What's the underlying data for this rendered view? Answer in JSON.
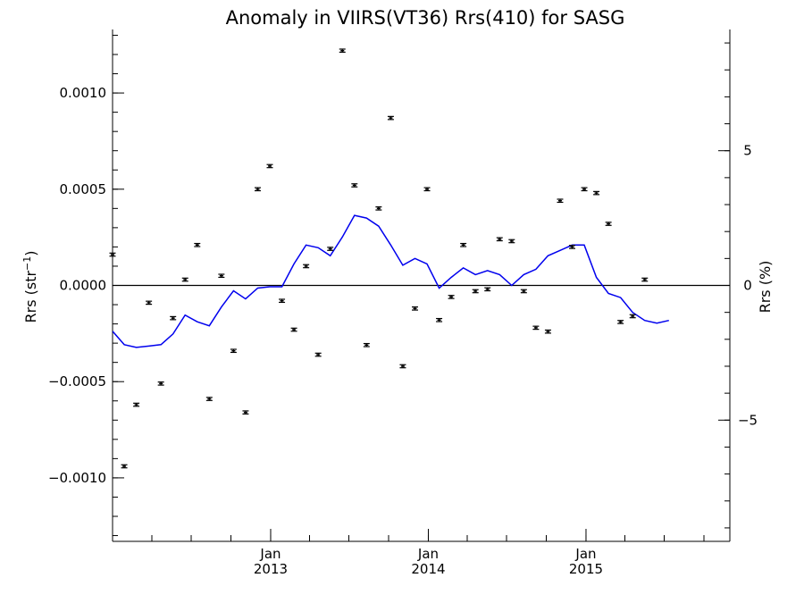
{
  "chart_data": {
    "type": "scatter",
    "title": "Anomaly in VIIRS(VT36) Rrs(410) for SASG",
    "ylabel": "Rrs (str",
    "ylabel_superscript": "−1",
    "ylabel_suffix": ")",
    "y2label": "Rrs (%)",
    "xlim": [
      "2012-01-01",
      "2015-11-30"
    ],
    "ylim": [
      -0.00133,
      0.00133
    ],
    "y2lim": [
      -9.5,
      9.5
    ],
    "x_ticks": [
      {
        "date": "2013-01-01",
        "label_month": "Jan",
        "label_year": "2013"
      },
      {
        "date": "2014-01-01",
        "label_month": "Jan",
        "label_year": "2014"
      },
      {
        "date": "2015-01-01",
        "label_month": "Jan",
        "label_year": "2015"
      }
    ],
    "x_minor_tick_months": 3,
    "y_ticks": [
      {
        "value": 0.001,
        "label": "0.0010"
      },
      {
        "value": 0.0005,
        "label": "0.0005"
      },
      {
        "value": 0.0,
        "label": "0.0000"
      },
      {
        "value": -0.0005,
        "label": "−0.0005"
      },
      {
        "value": -0.001,
        "label": "−0.0010"
      }
    ],
    "y_minor_tick_step": 0.0001,
    "y2_ticks": [
      {
        "value": 5,
        "label": "5"
      },
      {
        "value": 0,
        "label": "0"
      },
      {
        "value": -5,
        "label": "−5"
      }
    ],
    "y2_minor_tick_step": 1,
    "zero_line": true,
    "grid": false,
    "colors": {
      "points": "#000000",
      "line": "#0000ee",
      "zero_line": "#000000"
    },
    "series": [
      {
        "kind": "points_with_error_bars",
        "axis": "left",
        "error": 8e-06,
        "points": [
          [
            "2012-01-01",
            0.00016
          ],
          [
            "2012-01-28",
            -0.00094
          ],
          [
            "2012-02-25",
            -0.00062
          ],
          [
            "2012-03-25",
            -9e-05
          ],
          [
            "2012-04-22",
            -0.00051
          ],
          [
            "2012-05-20",
            -0.00017
          ],
          [
            "2012-06-17",
            3e-05
          ],
          [
            "2012-07-15",
            0.00021
          ],
          [
            "2012-08-12",
            -0.00059
          ],
          [
            "2012-09-09",
            5e-05
          ],
          [
            "2012-10-07",
            -0.00034
          ],
          [
            "2012-11-04",
            -0.00066
          ],
          [
            "2012-12-02",
            0.0005
          ],
          [
            "2012-12-30",
            0.00062
          ],
          [
            "2013-01-27",
            -8e-05
          ],
          [
            "2013-02-24",
            -0.00023
          ],
          [
            "2013-03-24",
            0.0001
          ],
          [
            "2013-04-21",
            -0.00036
          ],
          [
            "2013-05-19",
            0.00019
          ],
          [
            "2013-06-16",
            0.00122
          ],
          [
            "2013-07-14",
            0.00052
          ],
          [
            "2013-08-11",
            -0.00031
          ],
          [
            "2013-09-08",
            0.0004
          ],
          [
            "2013-10-06",
            0.00087
          ],
          [
            "2013-11-03",
            -0.00042
          ],
          [
            "2013-12-01",
            -0.00012
          ],
          [
            "2013-12-29",
            0.0005
          ],
          [
            "2014-01-26",
            -0.00018
          ],
          [
            "2014-02-23",
            -6e-05
          ],
          [
            "2014-03-23",
            0.00021
          ],
          [
            "2014-04-20",
            -3e-05
          ],
          [
            "2014-05-18",
            -2e-05
          ],
          [
            "2014-06-15",
            0.00024
          ],
          [
            "2014-07-13",
            0.00023
          ],
          [
            "2014-08-10",
            -3e-05
          ],
          [
            "2014-09-07",
            -0.00022
          ],
          [
            "2014-10-05",
            -0.00024
          ],
          [
            "2014-11-02",
            0.00044
          ],
          [
            "2014-11-30",
            0.0002
          ],
          [
            "2014-12-28",
            0.0005
          ],
          [
            "2015-01-25",
            0.00048
          ],
          [
            "2015-02-22",
            0.00032
          ],
          [
            "2015-03-22",
            -0.00019
          ],
          [
            "2015-04-19",
            -0.00016
          ],
          [
            "2015-05-17",
            3e-05
          ]
        ]
      },
      {
        "kind": "line",
        "axis": "right",
        "points": [
          [
            "2012-01-01",
            -1.7
          ],
          [
            "2012-01-28",
            -2.2
          ],
          [
            "2012-02-25",
            -2.3
          ],
          [
            "2012-03-25",
            -2.25
          ],
          [
            "2012-04-22",
            -2.2
          ],
          [
            "2012-05-20",
            -1.8
          ],
          [
            "2012-06-17",
            -1.1
          ],
          [
            "2012-07-15",
            -1.35
          ],
          [
            "2012-08-12",
            -1.5
          ],
          [
            "2012-09-09",
            -0.8
          ],
          [
            "2012-10-07",
            -0.2
          ],
          [
            "2012-11-04",
            -0.5
          ],
          [
            "2012-12-02",
            -0.1
          ],
          [
            "2012-12-30",
            -0.05
          ],
          [
            "2013-01-27",
            -0.05
          ],
          [
            "2013-02-24",
            0.8
          ],
          [
            "2013-03-24",
            1.5
          ],
          [
            "2013-04-21",
            1.4
          ],
          [
            "2013-05-19",
            1.1
          ],
          [
            "2013-06-16",
            1.8
          ],
          [
            "2013-07-14",
            2.6
          ],
          [
            "2013-08-11",
            2.5
          ],
          [
            "2013-09-08",
            2.2
          ],
          [
            "2013-10-06",
            1.5
          ],
          [
            "2013-11-03",
            0.75
          ],
          [
            "2013-12-01",
            1.0
          ],
          [
            "2013-12-29",
            0.8
          ],
          [
            "2014-01-26",
            -0.1
          ],
          [
            "2014-02-23",
            0.3
          ],
          [
            "2014-03-23",
            0.65
          ],
          [
            "2014-04-20",
            0.4
          ],
          [
            "2014-05-18",
            0.55
          ],
          [
            "2014-06-15",
            0.4
          ],
          [
            "2014-07-13",
            0.0
          ],
          [
            "2014-08-10",
            0.4
          ],
          [
            "2014-09-07",
            0.6
          ],
          [
            "2014-10-05",
            1.1
          ],
          [
            "2014-11-02",
            1.3
          ],
          [
            "2014-11-30",
            1.5
          ],
          [
            "2014-12-28",
            1.5
          ],
          [
            "2015-01-25",
            0.3
          ],
          [
            "2015-02-22",
            -0.3
          ],
          [
            "2015-03-22",
            -0.45
          ],
          [
            "2015-04-19",
            -1.0
          ],
          [
            "2015-05-17",
            -1.3
          ],
          [
            "2015-06-14",
            -1.4
          ],
          [
            "2015-07-12",
            -1.3
          ]
        ]
      }
    ]
  }
}
